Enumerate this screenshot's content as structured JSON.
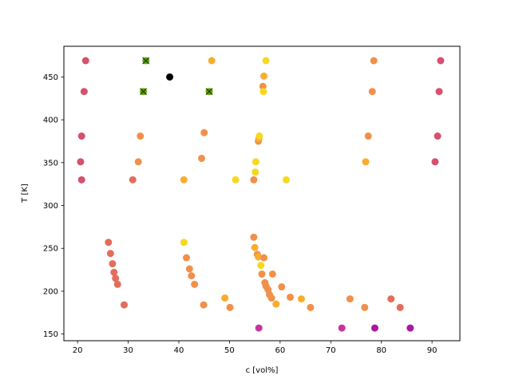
{
  "chart_data": {
    "type": "scatter",
    "title": "",
    "xlabel": "c [vol%]",
    "ylabel": "T [K]",
    "xlim": [
      17.3,
      95.5
    ],
    "ylim": [
      142.2,
      485.8
    ],
    "xticks": [
      20,
      30,
      40,
      50,
      60,
      70,
      80,
      90
    ],
    "yticks": [
      150,
      200,
      250,
      300,
      350,
      400,
      450
    ],
    "grid": false,
    "colors": {
      "magenta": "#a918a8",
      "pinkmag": "#c6359e",
      "rose": "#d5516c",
      "coral": "#e36d5b",
      "orange": "#f1904a",
      "amber": "#f8ad2e",
      "yellow": "#f6d822",
      "cross_face": "#5aab00",
      "black": "#000000"
    },
    "points": [
      {
        "x": 21.6,
        "y": 469,
        "c": "rose"
      },
      {
        "x": 21.3,
        "y": 433,
        "c": "rose"
      },
      {
        "x": 20.8,
        "y": 381,
        "c": "rose"
      },
      {
        "x": 20.6,
        "y": 351,
        "c": "rose"
      },
      {
        "x": 20.8,
        "y": 330,
        "c": "rose"
      },
      {
        "x": 26.1,
        "y": 257,
        "c": "coral"
      },
      {
        "x": 26.5,
        "y": 244,
        "c": "coral"
      },
      {
        "x": 26.9,
        "y": 232,
        "c": "coral"
      },
      {
        "x": 27.2,
        "y": 222,
        "c": "coral"
      },
      {
        "x": 27.5,
        "y": 215,
        "c": "coral"
      },
      {
        "x": 27.9,
        "y": 208,
        "c": "coral"
      },
      {
        "x": 29.2,
        "y": 184,
        "c": "coral"
      },
      {
        "x": 32.4,
        "y": 381,
        "c": "orange"
      },
      {
        "x": 32.0,
        "y": 351,
        "c": "orange"
      },
      {
        "x": 30.9,
        "y": 330,
        "c": "coral"
      },
      {
        "x": 41.0,
        "y": 330,
        "c": "amber"
      },
      {
        "x": 45.0,
        "y": 385,
        "c": "orange"
      },
      {
        "x": 44.5,
        "y": 355,
        "c": "orange"
      },
      {
        "x": 46.5,
        "y": 469,
        "c": "amber"
      },
      {
        "x": 41.0,
        "y": 257,
        "c": "yellow"
      },
      {
        "x": 41.5,
        "y": 239,
        "c": "orange"
      },
      {
        "x": 42.1,
        "y": 226,
        "c": "orange"
      },
      {
        "x": 42.5,
        "y": 218,
        "c": "orange"
      },
      {
        "x": 43.1,
        "y": 208,
        "c": "orange"
      },
      {
        "x": 44.9,
        "y": 184,
        "c": "orange"
      },
      {
        "x": 49.1,
        "y": 192,
        "c": "amber"
      },
      {
        "x": 50.1,
        "y": 181,
        "c": "orange"
      },
      {
        "x": 38.2,
        "y": 450,
        "c": "black"
      },
      {
        "x": 51.2,
        "y": 330,
        "c": "yellow"
      },
      {
        "x": 54.8,
        "y": 330,
        "c": "orange"
      },
      {
        "x": 55.1,
        "y": 339,
        "c": "yellow"
      },
      {
        "x": 55.2,
        "y": 351,
        "c": "yellow"
      },
      {
        "x": 55.7,
        "y": 375,
        "c": "orange"
      },
      {
        "x": 55.8,
        "y": 378,
        "c": "amber"
      },
      {
        "x": 55.9,
        "y": 381,
        "c": "yellow"
      },
      {
        "x": 56.6,
        "y": 439,
        "c": "orange"
      },
      {
        "x": 56.8,
        "y": 451,
        "c": "amber"
      },
      {
        "x": 57.2,
        "y": 469,
        "c": "yellow"
      },
      {
        "x": 56.7,
        "y": 433,
        "c": "yellow"
      },
      {
        "x": 61.2,
        "y": 330,
        "c": "yellow"
      },
      {
        "x": 54.8,
        "y": 263,
        "c": "orange"
      },
      {
        "x": 55.0,
        "y": 251,
        "c": "amber"
      },
      {
        "x": 55.5,
        "y": 243,
        "c": "orange"
      },
      {
        "x": 55.7,
        "y": 240,
        "c": "amber"
      },
      {
        "x": 56.2,
        "y": 230,
        "c": "yellow"
      },
      {
        "x": 56.8,
        "y": 239,
        "c": "orange"
      },
      {
        "x": 56.4,
        "y": 220,
        "c": "orange"
      },
      {
        "x": 57.0,
        "y": 210,
        "c": "orange"
      },
      {
        "x": 57.2,
        "y": 206,
        "c": "orange"
      },
      {
        "x": 57.6,
        "y": 202,
        "c": "orange"
      },
      {
        "x": 57.9,
        "y": 196,
        "c": "orange"
      },
      {
        "x": 58.3,
        "y": 192,
        "c": "orange"
      },
      {
        "x": 58.5,
        "y": 220,
        "c": "orange"
      },
      {
        "x": 59.2,
        "y": 185,
        "c": "amber"
      },
      {
        "x": 60.3,
        "y": 205,
        "c": "orange"
      },
      {
        "x": 62.0,
        "y": 193,
        "c": "orange"
      },
      {
        "x": 64.2,
        "y": 191,
        "c": "amber"
      },
      {
        "x": 66.0,
        "y": 181,
        "c": "orange"
      },
      {
        "x": 73.8,
        "y": 191,
        "c": "orange"
      },
      {
        "x": 76.7,
        "y": 181,
        "c": "orange"
      },
      {
        "x": 76.9,
        "y": 351,
        "c": "amber"
      },
      {
        "x": 77.4,
        "y": 381,
        "c": "orange"
      },
      {
        "x": 78.2,
        "y": 433,
        "c": "orange"
      },
      {
        "x": 78.5,
        "y": 469,
        "c": "orange"
      },
      {
        "x": 81.9,
        "y": 191,
        "c": "coral"
      },
      {
        "x": 83.7,
        "y": 181,
        "c": "coral"
      },
      {
        "x": 90.6,
        "y": 351,
        "c": "rose"
      },
      {
        "x": 91.1,
        "y": 381,
        "c": "rose"
      },
      {
        "x": 91.4,
        "y": 433,
        "c": "rose"
      },
      {
        "x": 91.7,
        "y": 469,
        "c": "rose"
      },
      {
        "x": 55.8,
        "y": 157,
        "c": "pinkmag"
      },
      {
        "x": 72.2,
        "y": 157,
        "c": "pinkmag"
      },
      {
        "x": 78.7,
        "y": 157,
        "c": "magenta"
      },
      {
        "x": 85.7,
        "y": 157,
        "c": "magenta"
      }
    ],
    "crosses": [
      {
        "x": 33.5,
        "y": 469
      },
      {
        "x": 33.0,
        "y": 433
      },
      {
        "x": 46.0,
        "y": 433
      }
    ]
  }
}
